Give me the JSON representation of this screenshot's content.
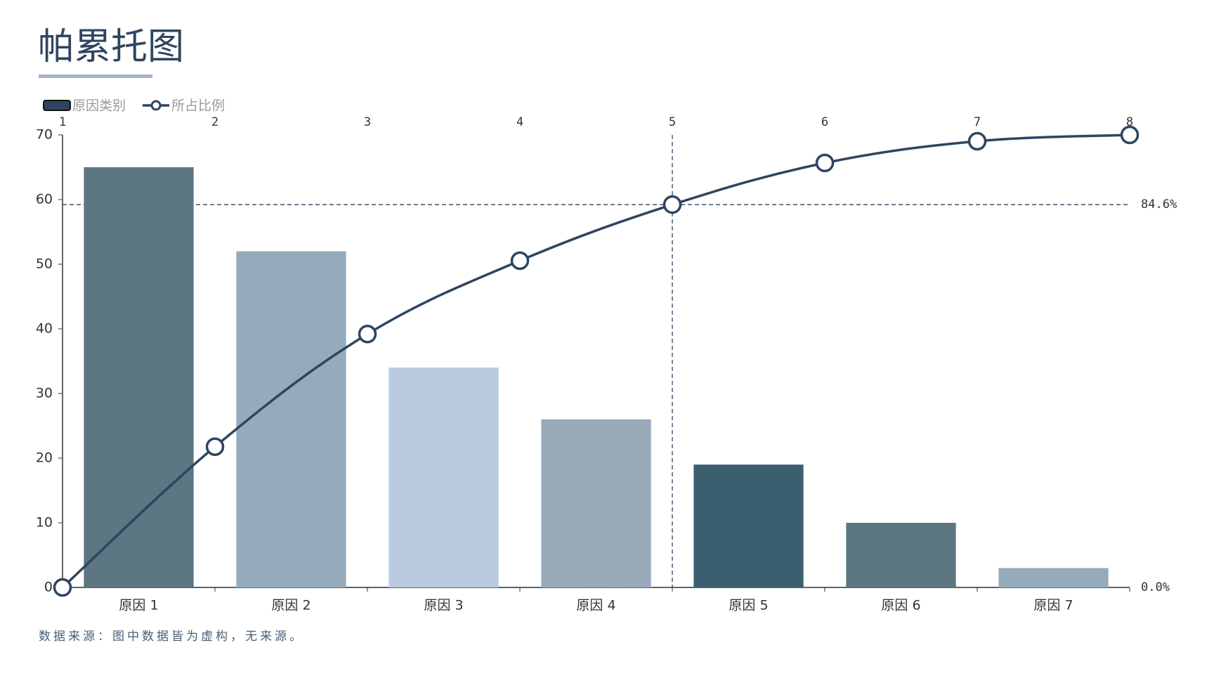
{
  "chart_data": {
    "type": "pareto",
    "title": "帕累托图",
    "source": "数据来源：图中数据皆为虚构，无来源。",
    "categories": [
      "原因 1",
      "原因 2",
      "原因 3",
      "原因 4",
      "原因 5",
      "原因 6",
      "原因 7"
    ],
    "series": [
      {
        "name": "原因类别",
        "type": "bar",
        "color": "#2e4560",
        "colors": [
          "#5c7682",
          "#95abbb",
          "#bacbe0",
          "#98aaba",
          "#3c5f70",
          "#5c7682",
          "#95abbb"
        ],
        "values": [
          65,
          52,
          34,
          26,
          19,
          10,
          3
        ]
      },
      {
        "name": "所占比例",
        "type": "line",
        "axis": "y2",
        "color": "#2e4560",
        "x": [
          1,
          2,
          3,
          4,
          5,
          6,
          7,
          8
        ],
        "values": [
          0,
          31.1,
          56,
          72.2,
          84.6,
          93.8,
          98.6,
          100
        ]
      }
    ],
    "ylim": [
      0,
      70
    ],
    "yticks": [
      0,
      10,
      20,
      30,
      40,
      50,
      60,
      70
    ],
    "y2lim": [
      0,
      100
    ],
    "y2ticks": [
      {
        "value": 0,
        "label": "0.0%"
      },
      {
        "value": 84.6,
        "label": "84.6%"
      }
    ],
    "x2lim": [
      1,
      8
    ],
    "x2ticks": [
      1,
      2,
      3,
      4,
      5,
      6,
      7,
      8
    ],
    "mark_x": 5
  }
}
